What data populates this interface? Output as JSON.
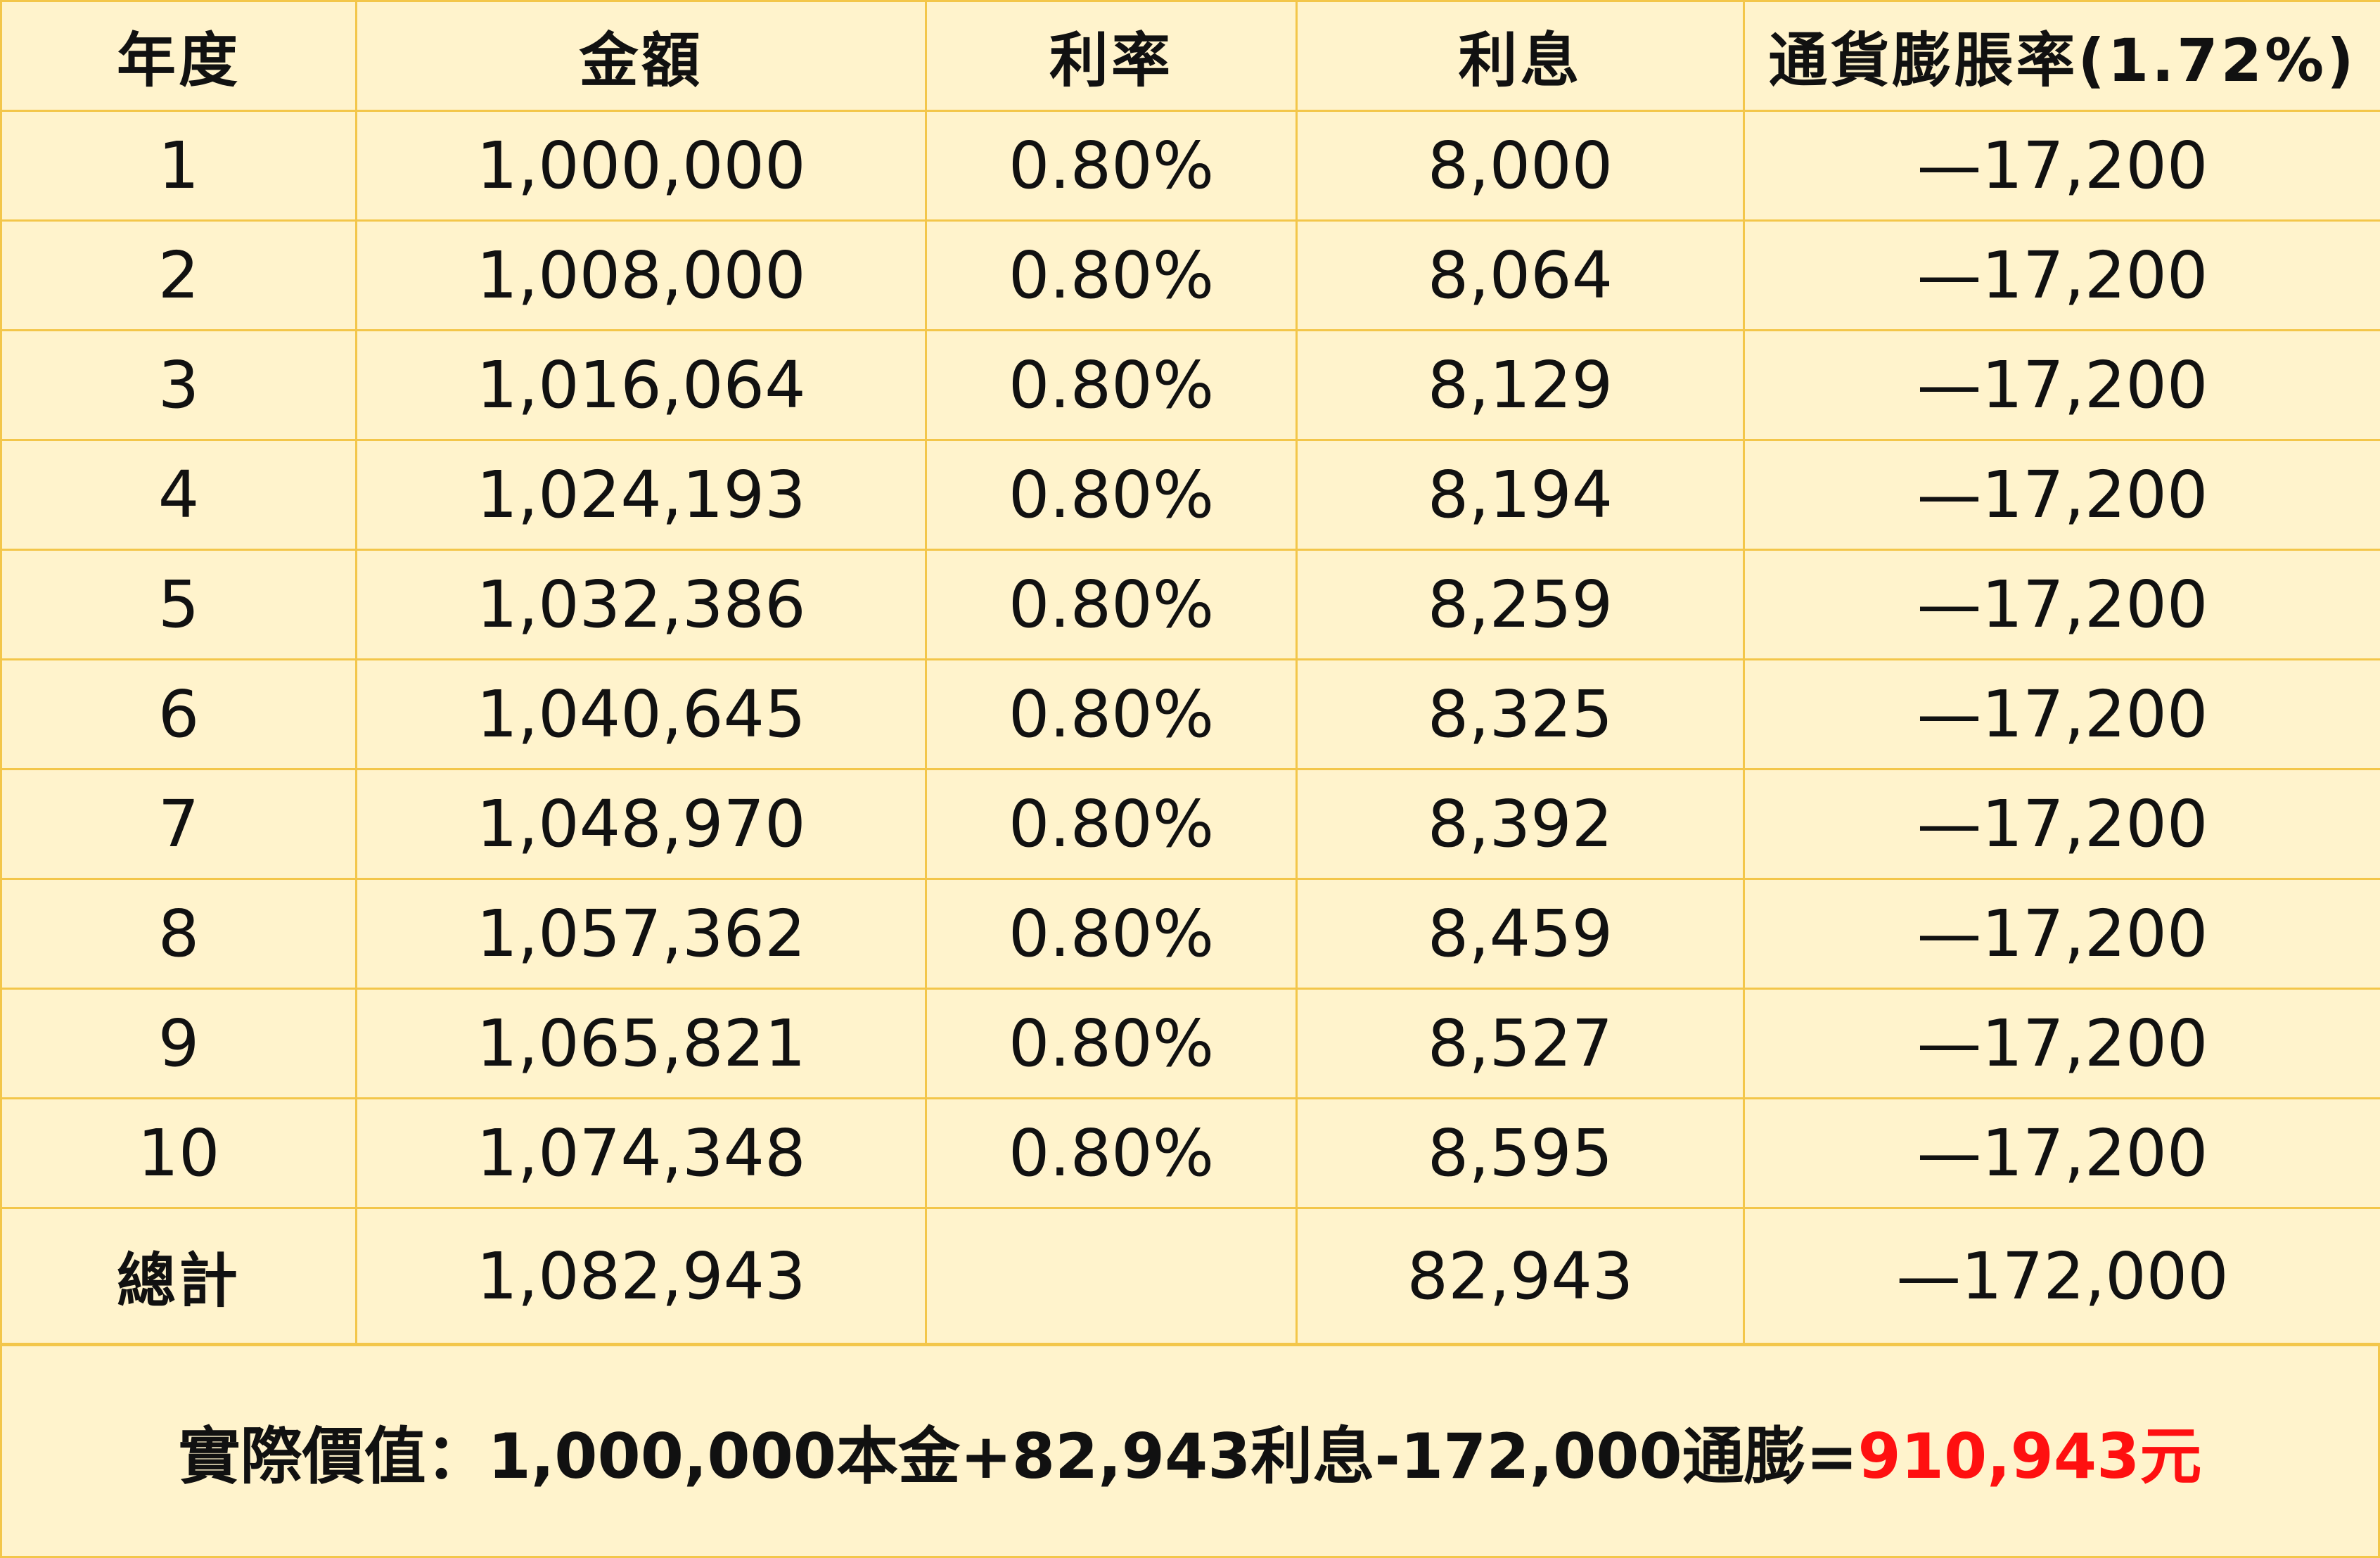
{
  "headers": {
    "year": "年度",
    "amount": "金額",
    "rate": "利率",
    "interest": "利息",
    "inflation": "通貨膨脹率(1.72%)"
  },
  "rows": [
    {
      "year": "1",
      "amount": "1,000,000",
      "rate": "0.80%",
      "interest": "8,000",
      "inflation": "—17,200"
    },
    {
      "year": "2",
      "amount": "1,008,000",
      "rate": "0.80%",
      "interest": "8,064",
      "inflation": "—17,200"
    },
    {
      "year": "3",
      "amount": "1,016,064",
      "rate": "0.80%",
      "interest": "8,129",
      "inflation": "—17,200"
    },
    {
      "year": "4",
      "amount": "1,024,193",
      "rate": "0.80%",
      "interest": "8,194",
      "inflation": "—17,200"
    },
    {
      "year": "5",
      "amount": "1,032,386",
      "rate": "0.80%",
      "interest": "8,259",
      "inflation": "—17,200"
    },
    {
      "year": "6",
      "amount": "1,040,645",
      "rate": "0.80%",
      "interest": "8,325",
      "inflation": "—17,200"
    },
    {
      "year": "7",
      "amount": "1,048,970",
      "rate": "0.80%",
      "interest": "8,392",
      "inflation": "—17,200"
    },
    {
      "year": "8",
      "amount": "1,057,362",
      "rate": "0.80%",
      "interest": "8,459",
      "inflation": "—17,200"
    },
    {
      "year": "9",
      "amount": "1,065,821",
      "rate": "0.80%",
      "interest": "8,527",
      "inflation": "—17,200"
    },
    {
      "year": "10",
      "amount": "1,074,348",
      "rate": "0.80%",
      "interest": "8,595",
      "inflation": "—17,200"
    }
  ],
  "total": {
    "label": "總計",
    "amount": "1,082,943",
    "rate": "",
    "interest": "82,943",
    "inflation": "—172,000"
  },
  "summary": {
    "prefix": "實際價值：1,000,000本金+82,943利息-172,000通膨=",
    "result": "910,943元"
  },
  "colors": {
    "background": "#fff3cc",
    "border": "#f3c64a",
    "negative": "#ff1010",
    "text": "#111111"
  }
}
